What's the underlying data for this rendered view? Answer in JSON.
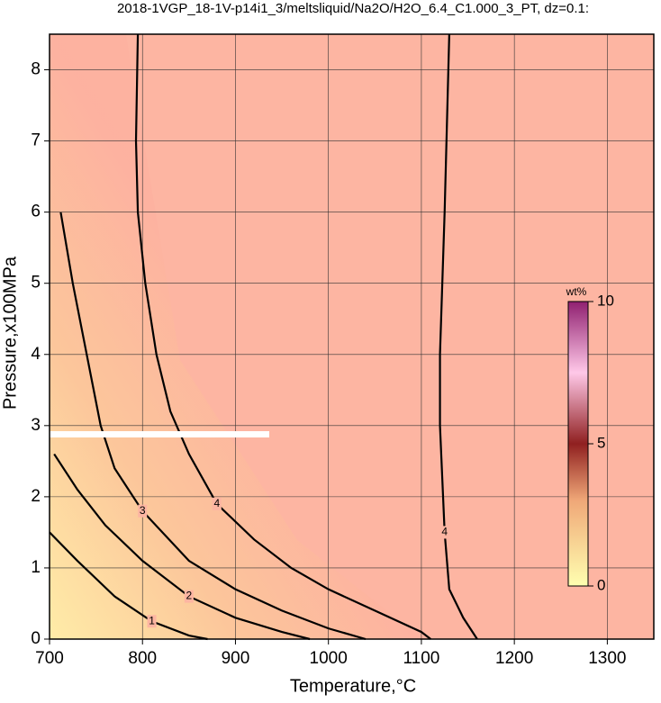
{
  "chart_data": {
    "type": "contour",
    "title": "2018-1VGP_18-1V-p14i1_3/meltsliquid/Na2O/H2O_6.4_C1.000_3_PT, dz=0.1:",
    "x_label": "Temperature,°C",
    "y_label": "Pressure,x100MPa",
    "xlim": [
      700,
      1350
    ],
    "ylim": [
      0,
      8.5
    ],
    "xticks": [
      700,
      800,
      900,
      1000,
      1100,
      1200,
      1300
    ],
    "yticks": [
      0,
      1,
      2,
      3,
      4,
      5,
      6,
      7,
      8
    ],
    "grid": true,
    "contours": [
      {
        "level": 1,
        "x": [
          700,
          730,
          770,
          810,
          850,
          870
        ],
        "y": [
          1.5,
          1.1,
          0.6,
          0.25,
          0.05,
          0
        ]
      },
      {
        "level": 2,
        "x": [
          705,
          730,
          760,
          800,
          850,
          900,
          950,
          980
        ],
        "y": [
          2.6,
          2.1,
          1.6,
          1.1,
          0.6,
          0.3,
          0.1,
          0
        ]
      },
      {
        "level": 3,
        "x": [
          712,
          725,
          740,
          755,
          770,
          800,
          850,
          900,
          950,
          1000,
          1040
        ],
        "y": [
          6,
          5,
          4,
          3,
          2.4,
          1.8,
          1.1,
          0.7,
          0.4,
          0.15,
          0
        ]
      },
      {
        "level": 4,
        "x": [
          795,
          793,
          795,
          803,
          815,
          830,
          850,
          880,
          920,
          960,
          1000,
          1050,
          1100,
          1110
        ],
        "y": [
          8.5,
          7,
          6,
          5,
          4,
          3.2,
          2.6,
          1.9,
          1.4,
          1.0,
          0.7,
          0.4,
          0.1,
          0
        ]
      },
      {
        "level": 4,
        "x": [
          1130,
          1125,
          1120,
          1120,
          1125,
          1130,
          1145,
          1160
        ],
        "y": [
          8.5,
          6,
          4,
          3,
          1.5,
          0.7,
          0.3,
          0
        ]
      }
    ],
    "colorbar": {
      "label": "wt%",
      "lim": [
        0,
        10
      ],
      "ticks": [
        0,
        5,
        10
      ]
    }
  }
}
